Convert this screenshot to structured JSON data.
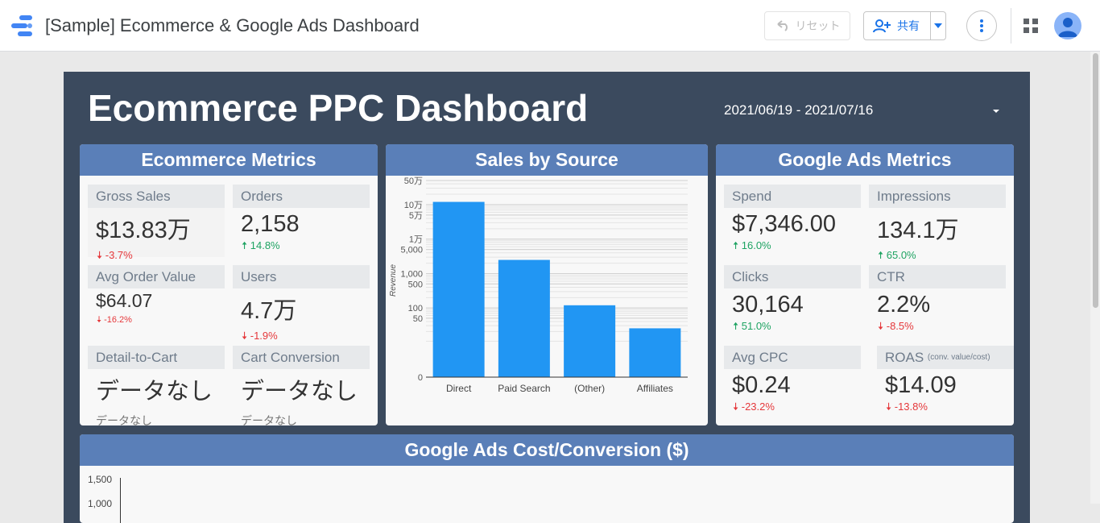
{
  "app": {
    "title": "[Sample] Ecommerce & Google Ads Dashboard",
    "reset_label": "リセット",
    "share_label": "共有"
  },
  "report": {
    "title": "Ecommerce PPC Dashboard",
    "date_range": "2021/06/19 - 2021/07/16"
  },
  "ecommerce": {
    "header": "Ecommerce Metrics",
    "metrics": [
      {
        "label": "Gross Sales",
        "value": "$13.83万",
        "delta": "-3.7%",
        "dir": "down"
      },
      {
        "label": "Orders",
        "value": "2,158",
        "delta": "14.8%",
        "dir": "up"
      },
      {
        "label": "Avg Order Value",
        "value": "$64.07",
        "delta": "-16.2%",
        "dir": "down"
      },
      {
        "label": "Users",
        "value": "4.7万",
        "delta": "-1.9%",
        "dir": "down"
      },
      {
        "label": "Detail-to-Cart",
        "value": "データなし",
        "sub": "データなし"
      },
      {
        "label": "Cart Conversion",
        "value": "データなし",
        "sub": "データなし"
      }
    ]
  },
  "sales_by_source": {
    "header": "Sales by Source"
  },
  "chart_data": {
    "type": "bar",
    "title": "Sales by Source",
    "ylabel": "Revenue",
    "xlabel": "",
    "y_scale": "log",
    "categories": [
      "Direct",
      "Paid Search",
      "(Other)",
      "Affiliates"
    ],
    "values": [
      120000,
      2500,
      120,
      25
    ],
    "y_ticks": [
      {
        "value": 0,
        "label": "0"
      },
      {
        "value": 50,
        "label": "50"
      },
      {
        "value": 100,
        "label": "100"
      },
      {
        "value": 500,
        "label": "500"
      },
      {
        "value": 1000,
        "label": "1,000"
      },
      {
        "value": 5000,
        "label": "5,000"
      },
      {
        "value": 10000,
        "label": "1万"
      },
      {
        "value": 50000,
        "label": "5万"
      },
      {
        "value": 100000,
        "label": "10万"
      },
      {
        "value": 500000,
        "label": "50万"
      }
    ],
    "grid": true,
    "bar_color": "#2196f3"
  },
  "google_ads": {
    "header": "Google Ads Metrics",
    "metrics": [
      {
        "label": "Spend",
        "value": "$7,346.00",
        "delta": "16.0%",
        "dir": "up"
      },
      {
        "label": "Impressions",
        "value": "134.1万",
        "delta": "65.0%",
        "dir": "up"
      },
      {
        "label": "Clicks",
        "value": "30,164",
        "delta": "51.0%",
        "dir": "up"
      },
      {
        "label": "CTR",
        "value": "2.2%",
        "delta": "-8.5%",
        "dir": "down"
      },
      {
        "label": "Avg CPC",
        "value": "$0.24",
        "delta": "-23.2%",
        "dir": "down"
      },
      {
        "label": "ROAS",
        "label_small": "(conv. value/cost)",
        "value": "$14.09",
        "delta": "-13.8%",
        "dir": "down"
      }
    ]
  },
  "cost_conversion": {
    "header": "Google Ads  Cost/Conversion ($)",
    "y_ticks": [
      "1,500",
      "1,000"
    ]
  },
  "colors": {
    "report_bg": "#3b4a5e",
    "panel_header": "#5a7fb8",
    "up": "#1ea362",
    "down": "#e5383b"
  },
  "icons": {
    "logo": "data-studio-logo",
    "reset": "undo-icon",
    "share": "person-add-icon",
    "more": "more-vert-icon",
    "apps": "apps-grid-icon",
    "avatar": "account-avatar"
  }
}
